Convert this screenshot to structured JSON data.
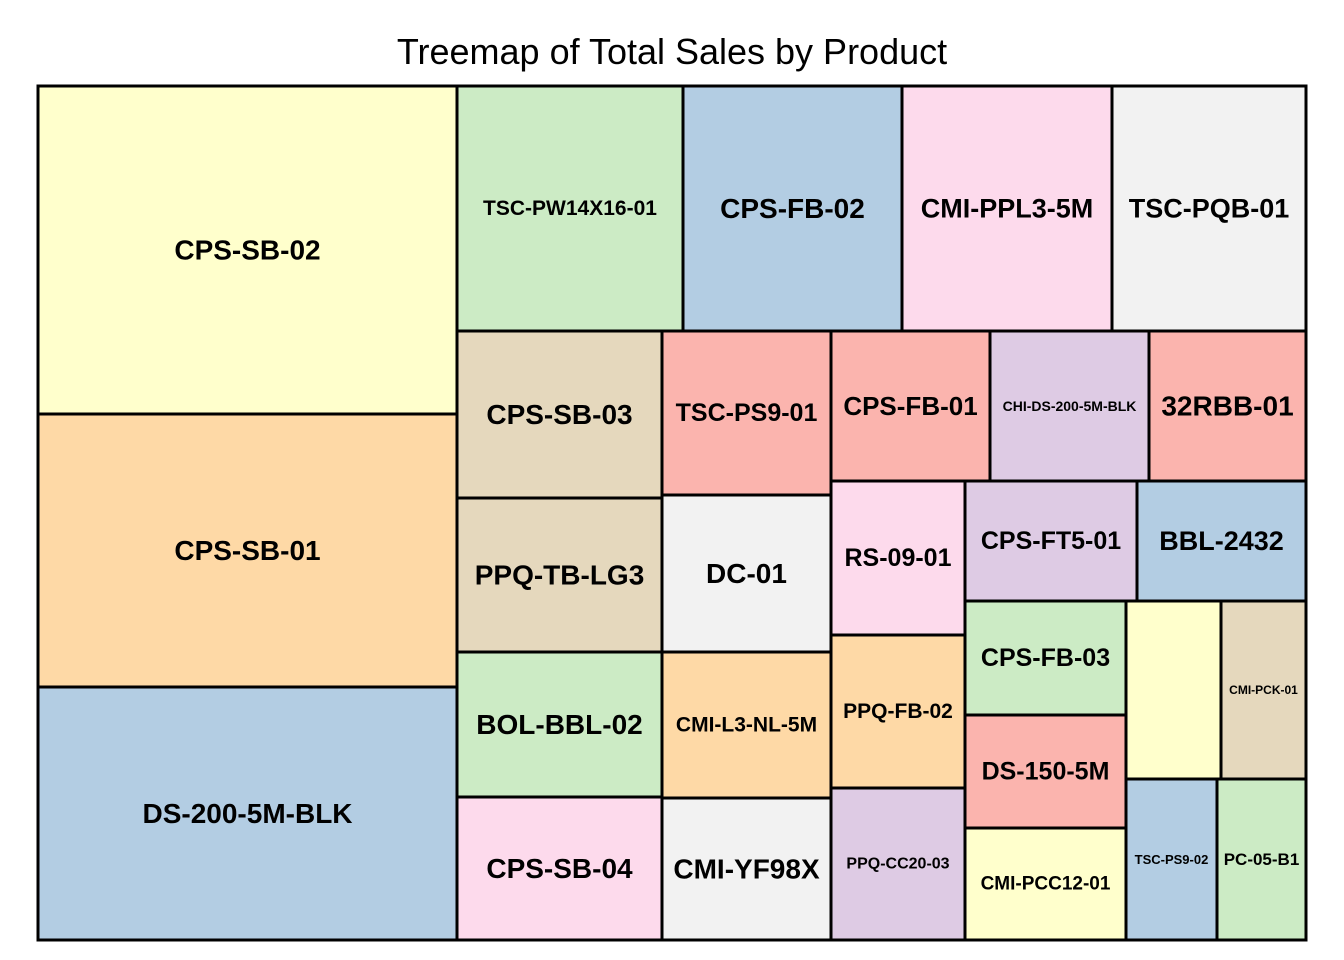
{
  "chart_data": {
    "type": "treemap",
    "title": "Treemap of Total Sales by Product",
    "palette": {
      "yellow": "#ffffcc",
      "orange": "#fed9a6",
      "blue": "#b3cde3",
      "green": "#ccebc5",
      "pink": "#fddaec",
      "grey": "#f2f2f2",
      "tan": "#e5d8bd",
      "red": "#fbb4ae",
      "purple": "#decbe4"
    },
    "tiles": [
      {
        "label": "CPS-SB-02",
        "color": "yellow"
      },
      {
        "label": "CPS-SB-01",
        "color": "orange"
      },
      {
        "label": "DS-200-5M-BLK",
        "color": "blue"
      },
      {
        "label": "TSC-PW14X16-01",
        "color": "green"
      },
      {
        "label": "CPS-FB-02",
        "color": "blue"
      },
      {
        "label": "CMI-PPL3-5M",
        "color": "pink"
      },
      {
        "label": "TSC-PQB-01",
        "color": "grey"
      },
      {
        "label": "CPS-SB-03",
        "color": "tan"
      },
      {
        "label": "PPQ-TB-LG3",
        "color": "tan"
      },
      {
        "label": "BOL-BBL-02",
        "color": "green"
      },
      {
        "label": "CPS-SB-04",
        "color": "pink"
      },
      {
        "label": "TSC-PS9-01",
        "color": "red"
      },
      {
        "label": "DC-01",
        "color": "grey"
      },
      {
        "label": "CMI-L3-NL-5M",
        "color": "orange"
      },
      {
        "label": "CMI-YF98X",
        "color": "grey"
      },
      {
        "label": "CPS-FB-01",
        "color": "red"
      },
      {
        "label": "CHI-DS-200-5M-BLK",
        "color": "purple"
      },
      {
        "label": "32RBB-01",
        "color": "red"
      },
      {
        "label": "RS-09-01",
        "color": "pink"
      },
      {
        "label": "PPQ-FB-02",
        "color": "orange"
      },
      {
        "label": "PPQ-CC20-03",
        "color": "purple"
      },
      {
        "label": "CPS-FT5-01",
        "color": "purple"
      },
      {
        "label": "BBL-2432",
        "color": "blue"
      },
      {
        "label": "CPS-FB-03",
        "color": "green"
      },
      {
        "label": "DS-150-5M",
        "color": "red"
      },
      {
        "label": "CMI-PCC12-01",
        "color": "yellow"
      },
      {
        "label": "",
        "color": "yellow"
      },
      {
        "label": "CMI-PCK-01",
        "color": "tan"
      },
      {
        "label": "TSC-PS9-02",
        "color": "blue"
      },
      {
        "label": "PC-05-B1",
        "color": "green"
      }
    ]
  }
}
